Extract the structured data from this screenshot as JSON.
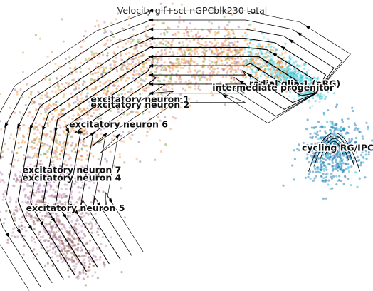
{
  "chart_data": {
    "type": "scatter",
    "title": "Velocity glf+sct nGPCblk230 total",
    "xlabel": "",
    "ylabel": "",
    "grid": false,
    "axes_visible": false,
    "overlay": "velocity streamlines",
    "clusters": [
      {
        "name": "radial glia 1 (oRG)",
        "color": "#17becf",
        "x": 0.8,
        "y": 0.745
      },
      {
        "name": "intermediate progenitor",
        "color": "#9edae5",
        "x": 0.74,
        "y": 0.73
      },
      {
        "name": "cycling RG/IPC",
        "color": "#1f77b4",
        "x": 0.92,
        "y": 0.5
      },
      {
        "name": "excitatory neuron 1",
        "color": "#ff7f0e",
        "x": 0.37,
        "y": 0.685
      },
      {
        "name": "excitatory neuron 2",
        "color": "#e39b4e",
        "x": 0.37,
        "y": 0.665
      },
      {
        "name": "excitatory neuron 6",
        "color": "#6f9e3a",
        "x": 0.31,
        "y": 0.59
      },
      {
        "name": "excitatory neuron 7",
        "color": "#8c6ea8",
        "x": 0.18,
        "y": 0.415
      },
      {
        "name": "excitatory neuron 4",
        "color": "#b989b5",
        "x": 0.18,
        "y": 0.385
      },
      {
        "name": "excitatory neuron 5",
        "color": "#8c564b",
        "x": 0.19,
        "y": 0.27
      }
    ]
  }
}
